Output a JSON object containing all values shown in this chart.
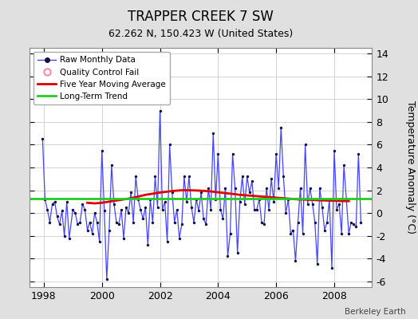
{
  "title": "TRAPPER CREEK 7 SW",
  "subtitle": "62.262 N, 150.423 W (United States)",
  "ylabel": "Temperature Anomaly (°C)",
  "credit": "Berkeley Earth",
  "xlim": [
    1997.5,
    2009.3
  ],
  "ylim": [
    -6.5,
    14.5
  ],
  "yticks": [
    -6,
    -4,
    -2,
    0,
    2,
    4,
    6,
    8,
    10,
    12,
    14
  ],
  "xticks": [
    1998,
    2000,
    2002,
    2004,
    2006,
    2008
  ],
  "long_term_trend_y": 1.25,
  "raw_line_color": "#4444ff",
  "raw_marker_color": "#111144",
  "moving_avg_color": "#dd0000",
  "long_term_color": "#22cc22",
  "qc_fail_color": "#ff88aa",
  "bg_color": "#e0e0e0",
  "plot_bg_color": "#ffffff",
  "grid_color": "#cccccc",
  "raw_data_times": [
    1997.958,
    1998.042,
    1998.125,
    1998.208,
    1998.292,
    1998.375,
    1998.458,
    1998.542,
    1998.625,
    1998.708,
    1998.792,
    1998.875,
    1999.0,
    1999.083,
    1999.167,
    1999.25,
    1999.333,
    1999.417,
    1999.5,
    1999.583,
    1999.667,
    1999.75,
    1999.833,
    1999.917,
    2000.0,
    2000.083,
    2000.167,
    2000.25,
    2000.333,
    2000.417,
    2000.5,
    2000.583,
    2000.667,
    2000.75,
    2000.833,
    2000.917,
    2001.0,
    2001.083,
    2001.167,
    2001.25,
    2001.333,
    2001.417,
    2001.5,
    2001.583,
    2001.667,
    2001.75,
    2001.833,
    2001.917,
    2002.0,
    2002.083,
    2002.167,
    2002.25,
    2002.333,
    2002.417,
    2002.5,
    2002.583,
    2002.667,
    2002.75,
    2002.833,
    2002.917,
    2003.0,
    2003.083,
    2003.167,
    2003.25,
    2003.333,
    2003.417,
    2003.5,
    2003.583,
    2003.667,
    2003.75,
    2003.833,
    2003.917,
    2004.0,
    2004.083,
    2004.167,
    2004.25,
    2004.333,
    2004.417,
    2004.5,
    2004.583,
    2004.667,
    2004.75,
    2004.833,
    2004.917,
    2005.0,
    2005.083,
    2005.167,
    2005.25,
    2005.333,
    2005.417,
    2005.5,
    2005.583,
    2005.667,
    2005.75,
    2005.833,
    2005.917,
    2006.0,
    2006.083,
    2006.167,
    2006.25,
    2006.333,
    2006.417,
    2006.5,
    2006.583,
    2006.667,
    2006.75,
    2006.833,
    2006.917,
    2007.0,
    2007.083,
    2007.167,
    2007.25,
    2007.333,
    2007.417,
    2007.5,
    2007.583,
    2007.667,
    2007.75,
    2007.833,
    2007.917,
    2008.0,
    2008.083,
    2008.167,
    2008.25,
    2008.333,
    2008.417,
    2008.5,
    2008.583,
    2008.667,
    2008.75,
    2008.833,
    2008.917
  ],
  "raw_data_values": [
    6.5,
    1.2,
    0.3,
    -0.8,
    0.8,
    1.0,
    -0.3,
    -1.0,
    0.2,
    -2.0,
    1.0,
    -2.2,
    0.3,
    0.0,
    -1.0,
    -0.8,
    0.8,
    0.3,
    -1.5,
    -0.8,
    -1.8,
    0.0,
    -0.8,
    -2.5,
    5.5,
    0.2,
    -5.8,
    -1.5,
    4.2,
    0.8,
    -0.8,
    -1.0,
    0.3,
    -2.2,
    0.5,
    0.0,
    1.8,
    -0.8,
    3.2,
    1.2,
    0.3,
    -0.5,
    0.5,
    -2.8,
    1.2,
    -0.8,
    3.2,
    0.5,
    9.0,
    0.3,
    1.0,
    -2.5,
    6.0,
    1.8,
    -0.8,
    0.3,
    -2.2,
    -1.0,
    3.2,
    1.0,
    3.2,
    0.5,
    -0.8,
    1.2,
    0.2,
    1.8,
    -0.5,
    -1.0,
    2.2,
    0.3,
    7.0,
    1.2,
    5.2,
    0.3,
    -0.5,
    2.2,
    -3.8,
    -1.8,
    5.2,
    2.2,
    -3.5,
    1.0,
    3.2,
    0.8,
    3.2,
    1.8,
    2.8,
    0.3,
    0.3,
    1.2,
    -0.8,
    -1.0,
    2.2,
    0.3,
    3.0,
    1.0,
    5.2,
    2.2,
    7.5,
    3.2,
    0.0,
    1.2,
    -1.8,
    -1.5,
    -4.2,
    -0.8,
    2.2,
    -1.8,
    6.0,
    0.8,
    2.2,
    0.8,
    -0.8,
    -4.5,
    2.2,
    0.5,
    -1.5,
    -0.8,
    1.2,
    -4.8,
    5.5,
    0.3,
    0.8,
    -1.8,
    4.2,
    1.2,
    -1.8,
    -0.8,
    -1.0,
    -1.2,
    5.2,
    -0.8
  ],
  "moving_avg_times": [
    1999.5,
    1999.75,
    2000.0,
    2000.25,
    2000.5,
    2000.75,
    2001.0,
    2001.25,
    2001.5,
    2001.75,
    2002.0,
    2002.25,
    2002.5,
    2002.75,
    2003.0,
    2003.25,
    2003.5,
    2003.75,
    2004.0,
    2004.25,
    2004.5,
    2004.75,
    2005.0,
    2005.25,
    2005.5,
    2005.75,
    2006.0,
    2006.25,
    2006.5,
    2006.75,
    2007.0,
    2007.25,
    2007.5,
    2007.75,
    2008.0,
    2008.25,
    2008.5
  ],
  "moving_avg_values": [
    0.9,
    0.85,
    0.9,
    1.0,
    1.1,
    1.2,
    1.3,
    1.45,
    1.6,
    1.7,
    1.8,
    1.88,
    1.95,
    2.0,
    2.0,
    1.98,
    1.95,
    1.9,
    1.82,
    1.75,
    1.68,
    1.6,
    1.55,
    1.5,
    1.45,
    1.4,
    1.35,
    1.3,
    1.25,
    1.2,
    1.18,
    1.15,
    1.12,
    1.1,
    1.08,
    1.05,
    1.05
  ]
}
